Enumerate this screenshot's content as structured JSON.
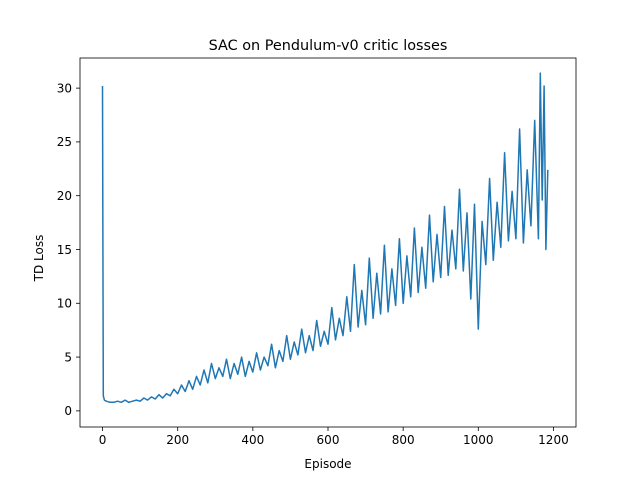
{
  "chart_data": {
    "type": "line",
    "title": "SAC on Pendulum-v0 critic losses",
    "xlabel": "Episode",
    "ylabel": "TD Loss",
    "xlim": [
      -60,
      1260
    ],
    "ylim": [
      -1.5,
      32.8
    ],
    "xticks": [
      0,
      200,
      400,
      600,
      800,
      1000,
      1200
    ],
    "xtick_labels": [
      "0",
      "200",
      "400",
      "600",
      "800",
      "1000",
      "1200"
    ],
    "yticks": [
      0,
      5,
      10,
      15,
      20,
      25,
      30
    ],
    "ytick_labels": [
      "0",
      "5",
      "10",
      "15",
      "20",
      "25",
      "30"
    ],
    "grid": false,
    "legend": "none",
    "series": [
      {
        "color": "#1f77b4",
        "x": [
          0,
          2,
          5,
          10,
          20,
          30,
          40,
          50,
          60,
          70,
          80,
          90,
          100,
          110,
          120,
          130,
          140,
          150,
          160,
          170,
          180,
          190,
          200,
          210,
          220,
          230,
          240,
          250,
          260,
          270,
          280,
          290,
          300,
          310,
          320,
          330,
          340,
          350,
          360,
          370,
          380,
          390,
          400,
          410,
          420,
          430,
          440,
          450,
          460,
          470,
          480,
          490,
          500,
          510,
          520,
          530,
          540,
          550,
          560,
          570,
          580,
          590,
          600,
          610,
          620,
          630,
          640,
          650,
          660,
          670,
          680,
          690,
          700,
          710,
          720,
          730,
          740,
          750,
          760,
          770,
          780,
          790,
          800,
          810,
          820,
          830,
          840,
          850,
          860,
          870,
          880,
          890,
          900,
          910,
          920,
          930,
          940,
          950,
          960,
          970,
          980,
          990,
          1000,
          1010,
          1020,
          1030,
          1040,
          1050,
          1060,
          1070,
          1080,
          1090,
          1100,
          1110,
          1120,
          1130,
          1140,
          1150,
          1160,
          1165,
          1170,
          1175,
          1180,
          1185
        ],
        "y": [
          30.2,
          1.4,
          1.0,
          0.9,
          0.8,
          0.8,
          0.9,
          0.8,
          1.0,
          0.8,
          0.9,
          1.0,
          0.9,
          1.2,
          1.0,
          1.3,
          1.1,
          1.5,
          1.2,
          1.6,
          1.4,
          2.0,
          1.6,
          2.4,
          1.8,
          2.8,
          2.0,
          3.2,
          2.4,
          3.8,
          2.6,
          4.4,
          3.0,
          4.0,
          3.2,
          4.8,
          3.0,
          4.4,
          3.4,
          5.0,
          3.2,
          4.6,
          3.6,
          5.4,
          3.8,
          5.0,
          4.2,
          6.2,
          4.0,
          5.6,
          4.6,
          7.0,
          4.8,
          6.4,
          5.2,
          7.6,
          5.4,
          7.0,
          5.6,
          8.4,
          6.0,
          7.4,
          6.2,
          9.6,
          6.6,
          8.6,
          7.0,
          10.6,
          7.4,
          13.6,
          7.8,
          11.2,
          8.0,
          14.2,
          8.6,
          12.8,
          9.0,
          15.4,
          9.2,
          13.2,
          9.8,
          16.0,
          10.0,
          14.4,
          10.6,
          17.0,
          11.0,
          15.2,
          11.4,
          18.2,
          12.0,
          16.4,
          12.4,
          19.0,
          12.6,
          16.8,
          13.2,
          20.6,
          13.0,
          18.4,
          10.4,
          19.2,
          7.6,
          17.6,
          13.6,
          21.6,
          14.0,
          19.4,
          15.2,
          24.0,
          15.8,
          20.4,
          16.0,
          26.2,
          15.6,
          22.4,
          17.2,
          27.0,
          16.0,
          31.4,
          19.6,
          30.2,
          15.0,
          22.4
        ]
      }
    ]
  }
}
